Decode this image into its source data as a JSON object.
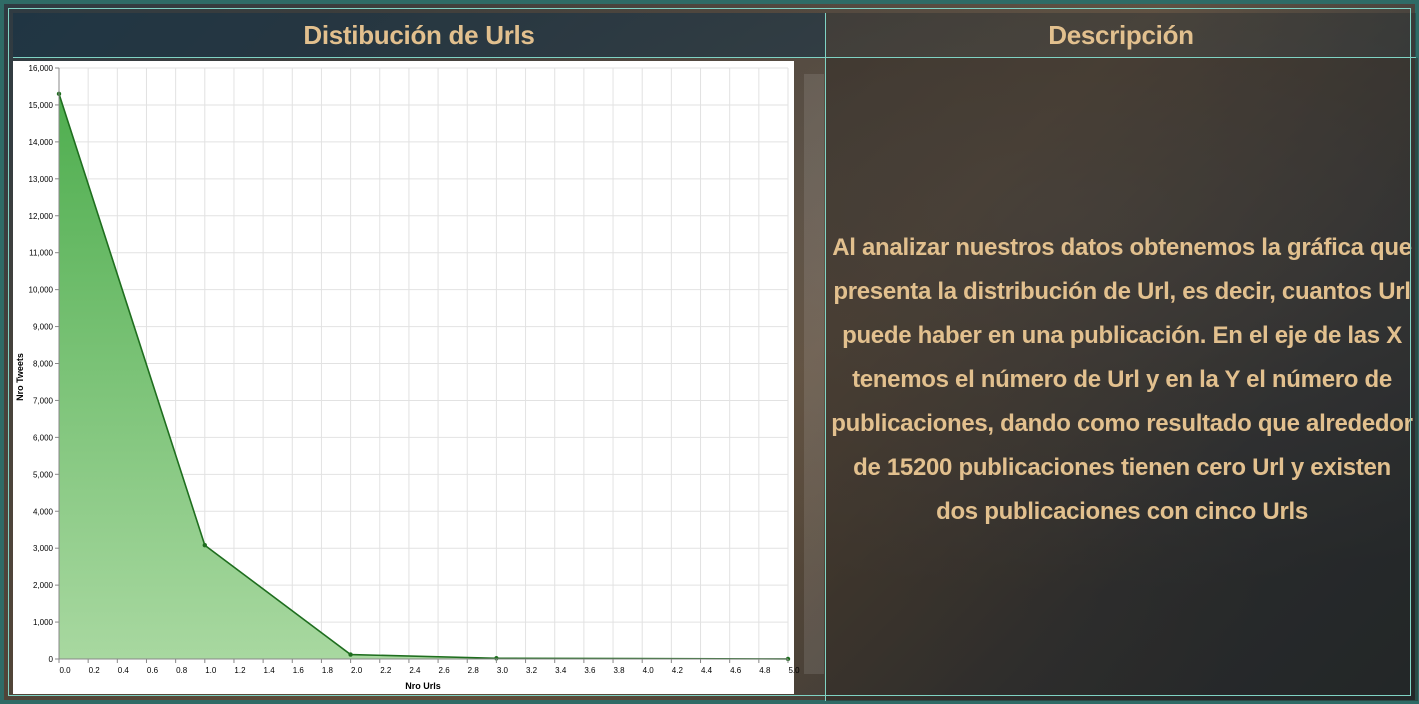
{
  "panels": {
    "left_title": "Distibución de Urls",
    "right_title": "Descripción"
  },
  "description": "Al analizar nuestros datos obtenemos la gráfica que presenta la distribución de Url, es decir, cuantos Url puede haber en una publicación. En el eje de las X tenemos el número de Url y en la Y el número de publicaciones, dando como resultado que alrededor de 15200 publicaciones tienen cero Url y existen dos publicaciones con cinco Urls",
  "colors": {
    "accent_text": "#e2c08e",
    "border": "#7fd3c4",
    "line": "#1f6e1f",
    "area_top": "#4fae4f",
    "area_bottom": "#a8d8a0"
  },
  "chart_data": {
    "type": "area",
    "title": "",
    "xlabel": "Nro Urls",
    "ylabel": "Nro Tweets",
    "x": [
      0,
      1,
      2,
      3,
      5
    ],
    "series": [
      {
        "values": [
          15300,
          3080,
          120,
          20,
          2
        ]
      }
    ],
    "xlim": [
      0,
      5
    ],
    "ylim": [
      0,
      16000
    ],
    "x_ticks": [
      0,
      0.2,
      0.4,
      0.6,
      0.8,
      1.0,
      1.2,
      1.4,
      1.6,
      1.8,
      2.0,
      2.2,
      2.4,
      2.6,
      2.8,
      3.0,
      3.2,
      3.4,
      3.6,
      3.8,
      4.0,
      4.2,
      4.4,
      4.6,
      4.8,
      5.0
    ],
    "x_tick_labels": [
      "0.0",
      "0.2",
      "0.4",
      "0.6",
      "0.8",
      "1.0",
      "1.2",
      "1.4",
      "1.6",
      "1.8",
      "2.0",
      "2.2",
      "2.4",
      "2.6",
      "2.8",
      "3.0",
      "3.2",
      "3.4",
      "3.6",
      "3.8",
      "4.0",
      "4.2",
      "4.4",
      "4.6",
      "4.8",
      "5.0"
    ],
    "y_ticks": [
      0,
      1000,
      2000,
      3000,
      4000,
      5000,
      6000,
      7000,
      8000,
      9000,
      10000,
      11000,
      12000,
      13000,
      14000,
      15000,
      16000
    ],
    "y_tick_labels": [
      "0",
      "1,000",
      "2,000",
      "3,000",
      "4,000",
      "5,000",
      "6,000",
      "7,000",
      "8,000",
      "9,000",
      "10,000",
      "11,000",
      "12,000",
      "13,000",
      "14,000",
      "15,000",
      "16,000"
    ],
    "grid": true,
    "legend": "none"
  }
}
